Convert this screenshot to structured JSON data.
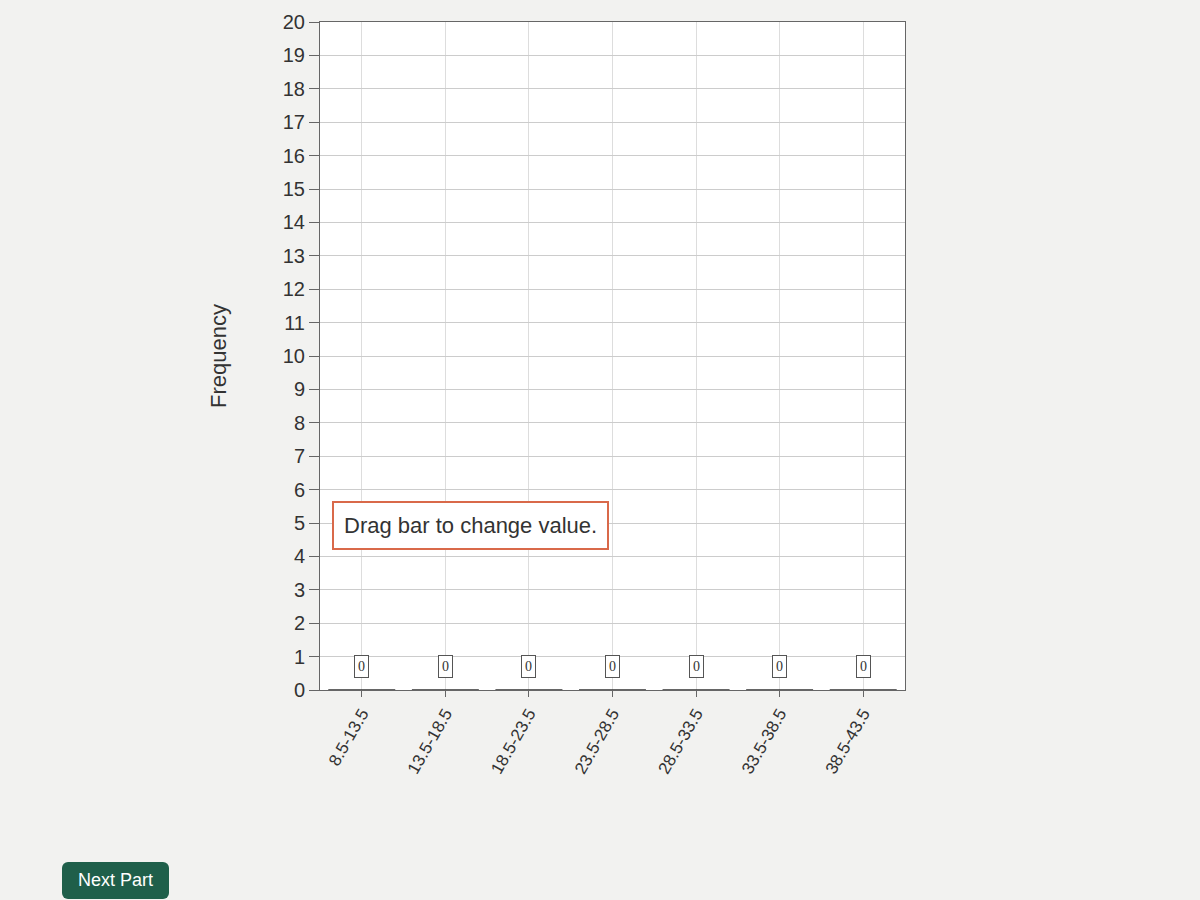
{
  "chart_data": {
    "type": "bar",
    "categories": [
      "8.5-13.5",
      "13.5-18.5",
      "18.5-23.5",
      "23.5-28.5",
      "28.5-33.5",
      "33.5-38.5",
      "38.5-43.5"
    ],
    "values": [
      0,
      0,
      0,
      0,
      0,
      0,
      0
    ],
    "y_label": "Frequency",
    "ylim": [
      0,
      20
    ],
    "yticks": [
      0,
      1,
      2,
      3,
      4,
      5,
      6,
      7,
      8,
      9,
      10,
      11,
      12,
      13,
      14,
      15,
      16,
      17,
      18,
      19,
      20
    ],
    "grid": true,
    "data_labels": true,
    "annotations": [
      "Drag bar to change value."
    ],
    "button": "Next Part"
  }
}
